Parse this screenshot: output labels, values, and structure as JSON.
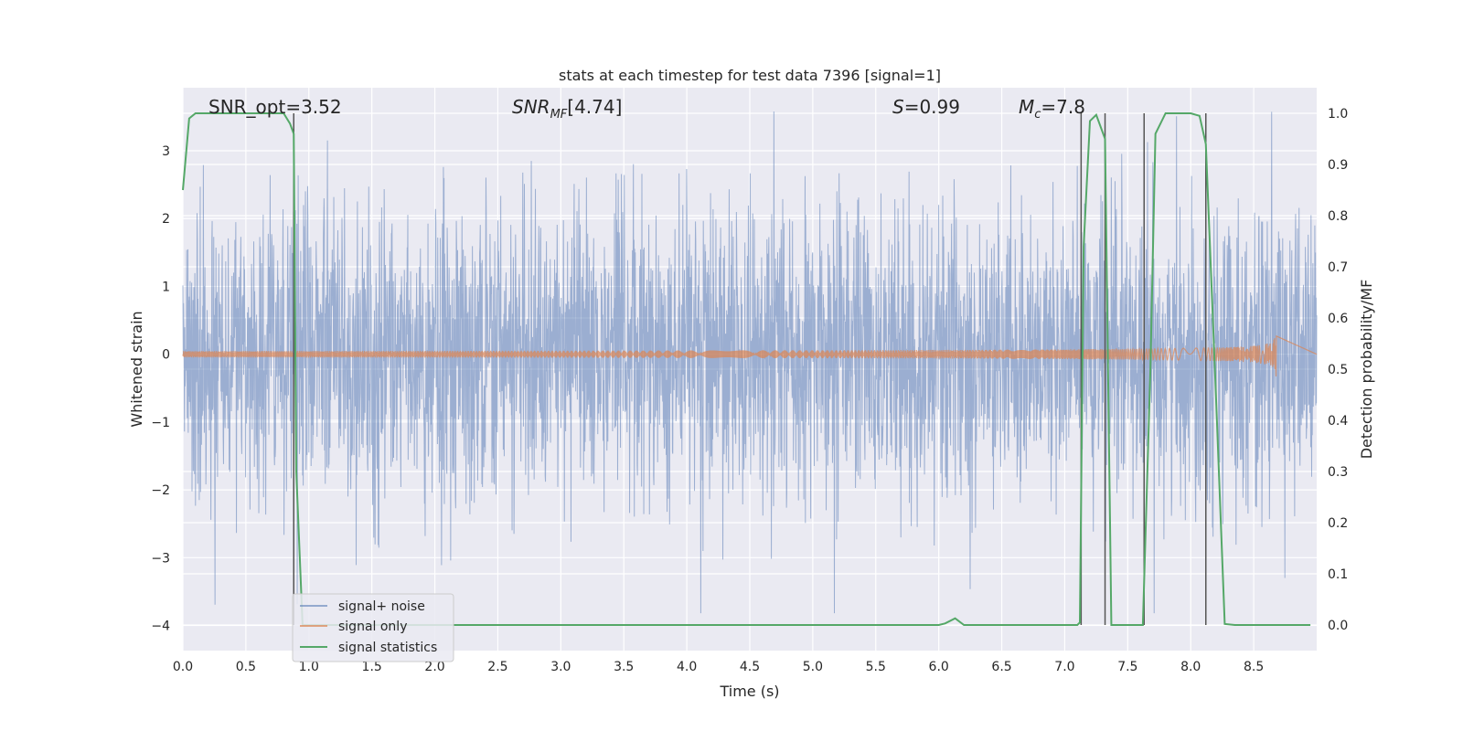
{
  "chart_data": {
    "type": "line",
    "title": "stats at each timestep for test data 7396 [signal=1]",
    "xlabel": "Time (s)",
    "ylabel_left": "Whitened strain",
    "ylabel_right": "Detection probability/MF",
    "xlim": [
      0,
      9.0
    ],
    "ylim_left": [
      -4.37,
      3.93
    ],
    "ylim_right": [
      -0.05,
      1.05
    ],
    "x_ticks": [
      0.0,
      0.5,
      1.0,
      1.5,
      2.0,
      2.5,
      3.0,
      3.5,
      4.0,
      4.5,
      5.0,
      5.5,
      6.0,
      6.5,
      7.0,
      7.5,
      8.0,
      8.5
    ],
    "x_tick_labels": [
      "0.0",
      "0.5",
      "1.0",
      "1.5",
      "2.0",
      "2.5",
      "3.0",
      "3.5",
      "4.0",
      "4.5",
      "5.0",
      "5.5",
      "6.0",
      "6.5",
      "7.0",
      "7.5",
      "8.0",
      "8.5"
    ],
    "y_ticks_left": [
      3,
      2,
      1,
      0,
      -1,
      -2,
      -3,
      -4
    ],
    "y_tick_labels_left": [
      "3",
      "2",
      "1",
      "0",
      "−1",
      "−2",
      "−3",
      "−4"
    ],
    "y_ticks_right": [
      1.0,
      0.9,
      0.8,
      0.7,
      0.6,
      0.5,
      0.4,
      0.3,
      0.2,
      0.1,
      0.0
    ],
    "y_tick_labels_right": [
      "1.0",
      "0.9",
      "0.8",
      "0.7",
      "0.6",
      "0.5",
      "0.4",
      "0.3",
      "0.2",
      "0.1",
      "0.0"
    ],
    "grid": true,
    "legend_position": "lower-left",
    "annotations": {
      "snr_opt": "SNR_opt=3.52",
      "snr_mf": "[4.74]",
      "s": "=0.99",
      "mc": "=7.8"
    },
    "series": [
      {
        "name": "signal+ noise",
        "color": "#4c72b0",
        "axis": "left",
        "noise_std": 1.05,
        "noise_range": [
          -3.82,
          3.58
        ]
      },
      {
        "name": "signal only",
        "color": "#dd8452",
        "axis": "left",
        "chirp_end_time": 8.68,
        "chirp_peak_amplitude": 0.45
      },
      {
        "name": "signal statistics",
        "color": "#55a868",
        "axis": "right",
        "x": [
          0.0,
          0.05,
          0.1,
          0.2,
          0.5,
          0.8,
          0.85,
          0.88,
          0.9,
          0.95,
          6.0,
          6.05,
          6.13,
          6.2,
          7.1,
          7.12,
          7.15,
          7.2,
          7.25,
          7.32,
          7.37,
          7.42,
          7.5,
          7.55,
          7.62,
          7.68,
          7.72,
          7.8,
          8.0,
          8.07,
          8.12,
          8.2,
          8.27,
          8.35,
          8.95
        ],
        "y": [
          0.85,
          0.99,
          1.0,
          1.0,
          1.0,
          1.0,
          0.98,
          0.96,
          0.3,
          0.0,
          0.0,
          0.003,
          0.013,
          0.0,
          0.0,
          0.005,
          0.74,
          0.985,
          0.997,
          0.95,
          0.0,
          0.0,
          0.0,
          0.0,
          0.0,
          0.5,
          0.96,
          1.0,
          1.0,
          0.995,
          0.94,
          0.45,
          0.002,
          0.0,
          0.0
        ]
      }
    ],
    "vertical_markers": [
      0.88,
      7.13,
      7.32,
      7.63,
      8.12
    ]
  }
}
